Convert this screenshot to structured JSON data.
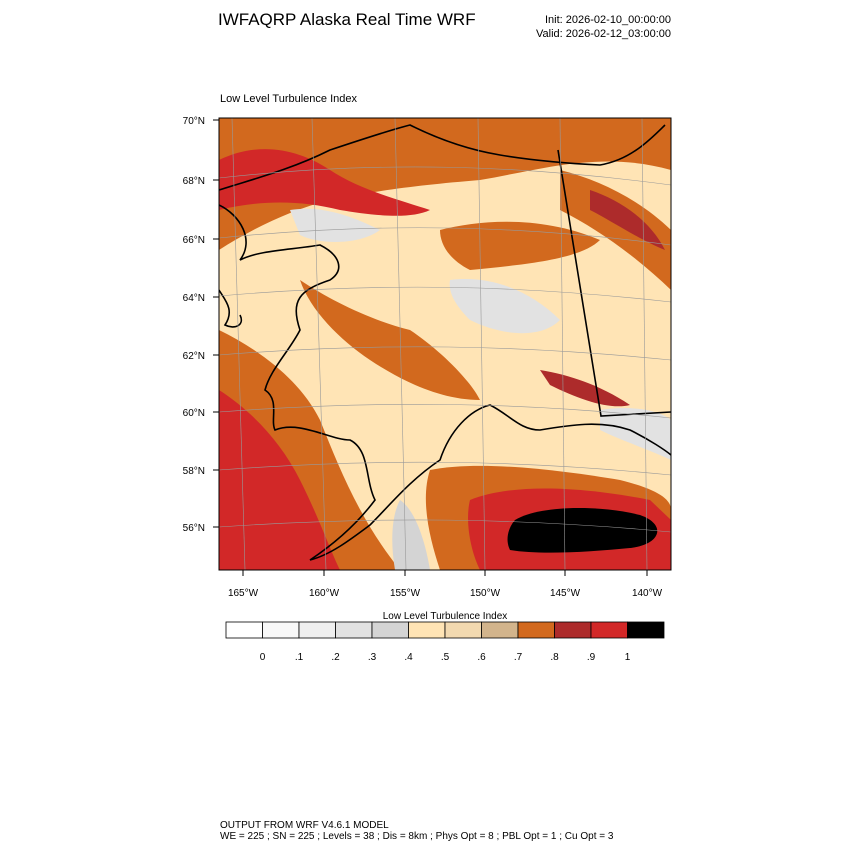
{
  "header": {
    "title": "IWFAQRP Alaska Real Time WRF",
    "init": "Init: 2026-02-10_00:00:00",
    "valid": "Valid: 2026-02-12_03:00:00"
  },
  "map": {
    "title": "Low Level Turbulence Index",
    "lat_labels": [
      "70°N",
      "68°N",
      "66°N",
      "64°N",
      "62°N",
      "60°N",
      "58°N",
      "56°N"
    ],
    "lon_labels": [
      "165°W",
      "160°W",
      "155°W",
      "150°W",
      "145°W",
      "140°W"
    ]
  },
  "colorbar": {
    "title": "Low Level Turbulence Index",
    "colors": [
      "#ffffff",
      "#f8f8f8",
      "#efefef",
      "#e2e2e2",
      "#d4d4d4",
      "#ffe4b5",
      "#f2d9b0",
      "#d2b48c",
      "#d2691e",
      "#ad2b2b",
      "#d22828",
      "#000000"
    ],
    "labels": [
      "0",
      ".1",
      ".2",
      ".3",
      ".4",
      ".5",
      ".6",
      ".7",
      ".8",
      ".9",
      "1"
    ]
  },
  "footer": {
    "lines": [
      "OUTPUT FROM WRF V4.6.1 MODEL",
      "WE = 225 ; SN = 225 ; Levels = 38 ; Dis = 8km ; Phys Opt = 8 ; PBL Opt = 1 ; Cu Opt = 3"
    ]
  }
}
